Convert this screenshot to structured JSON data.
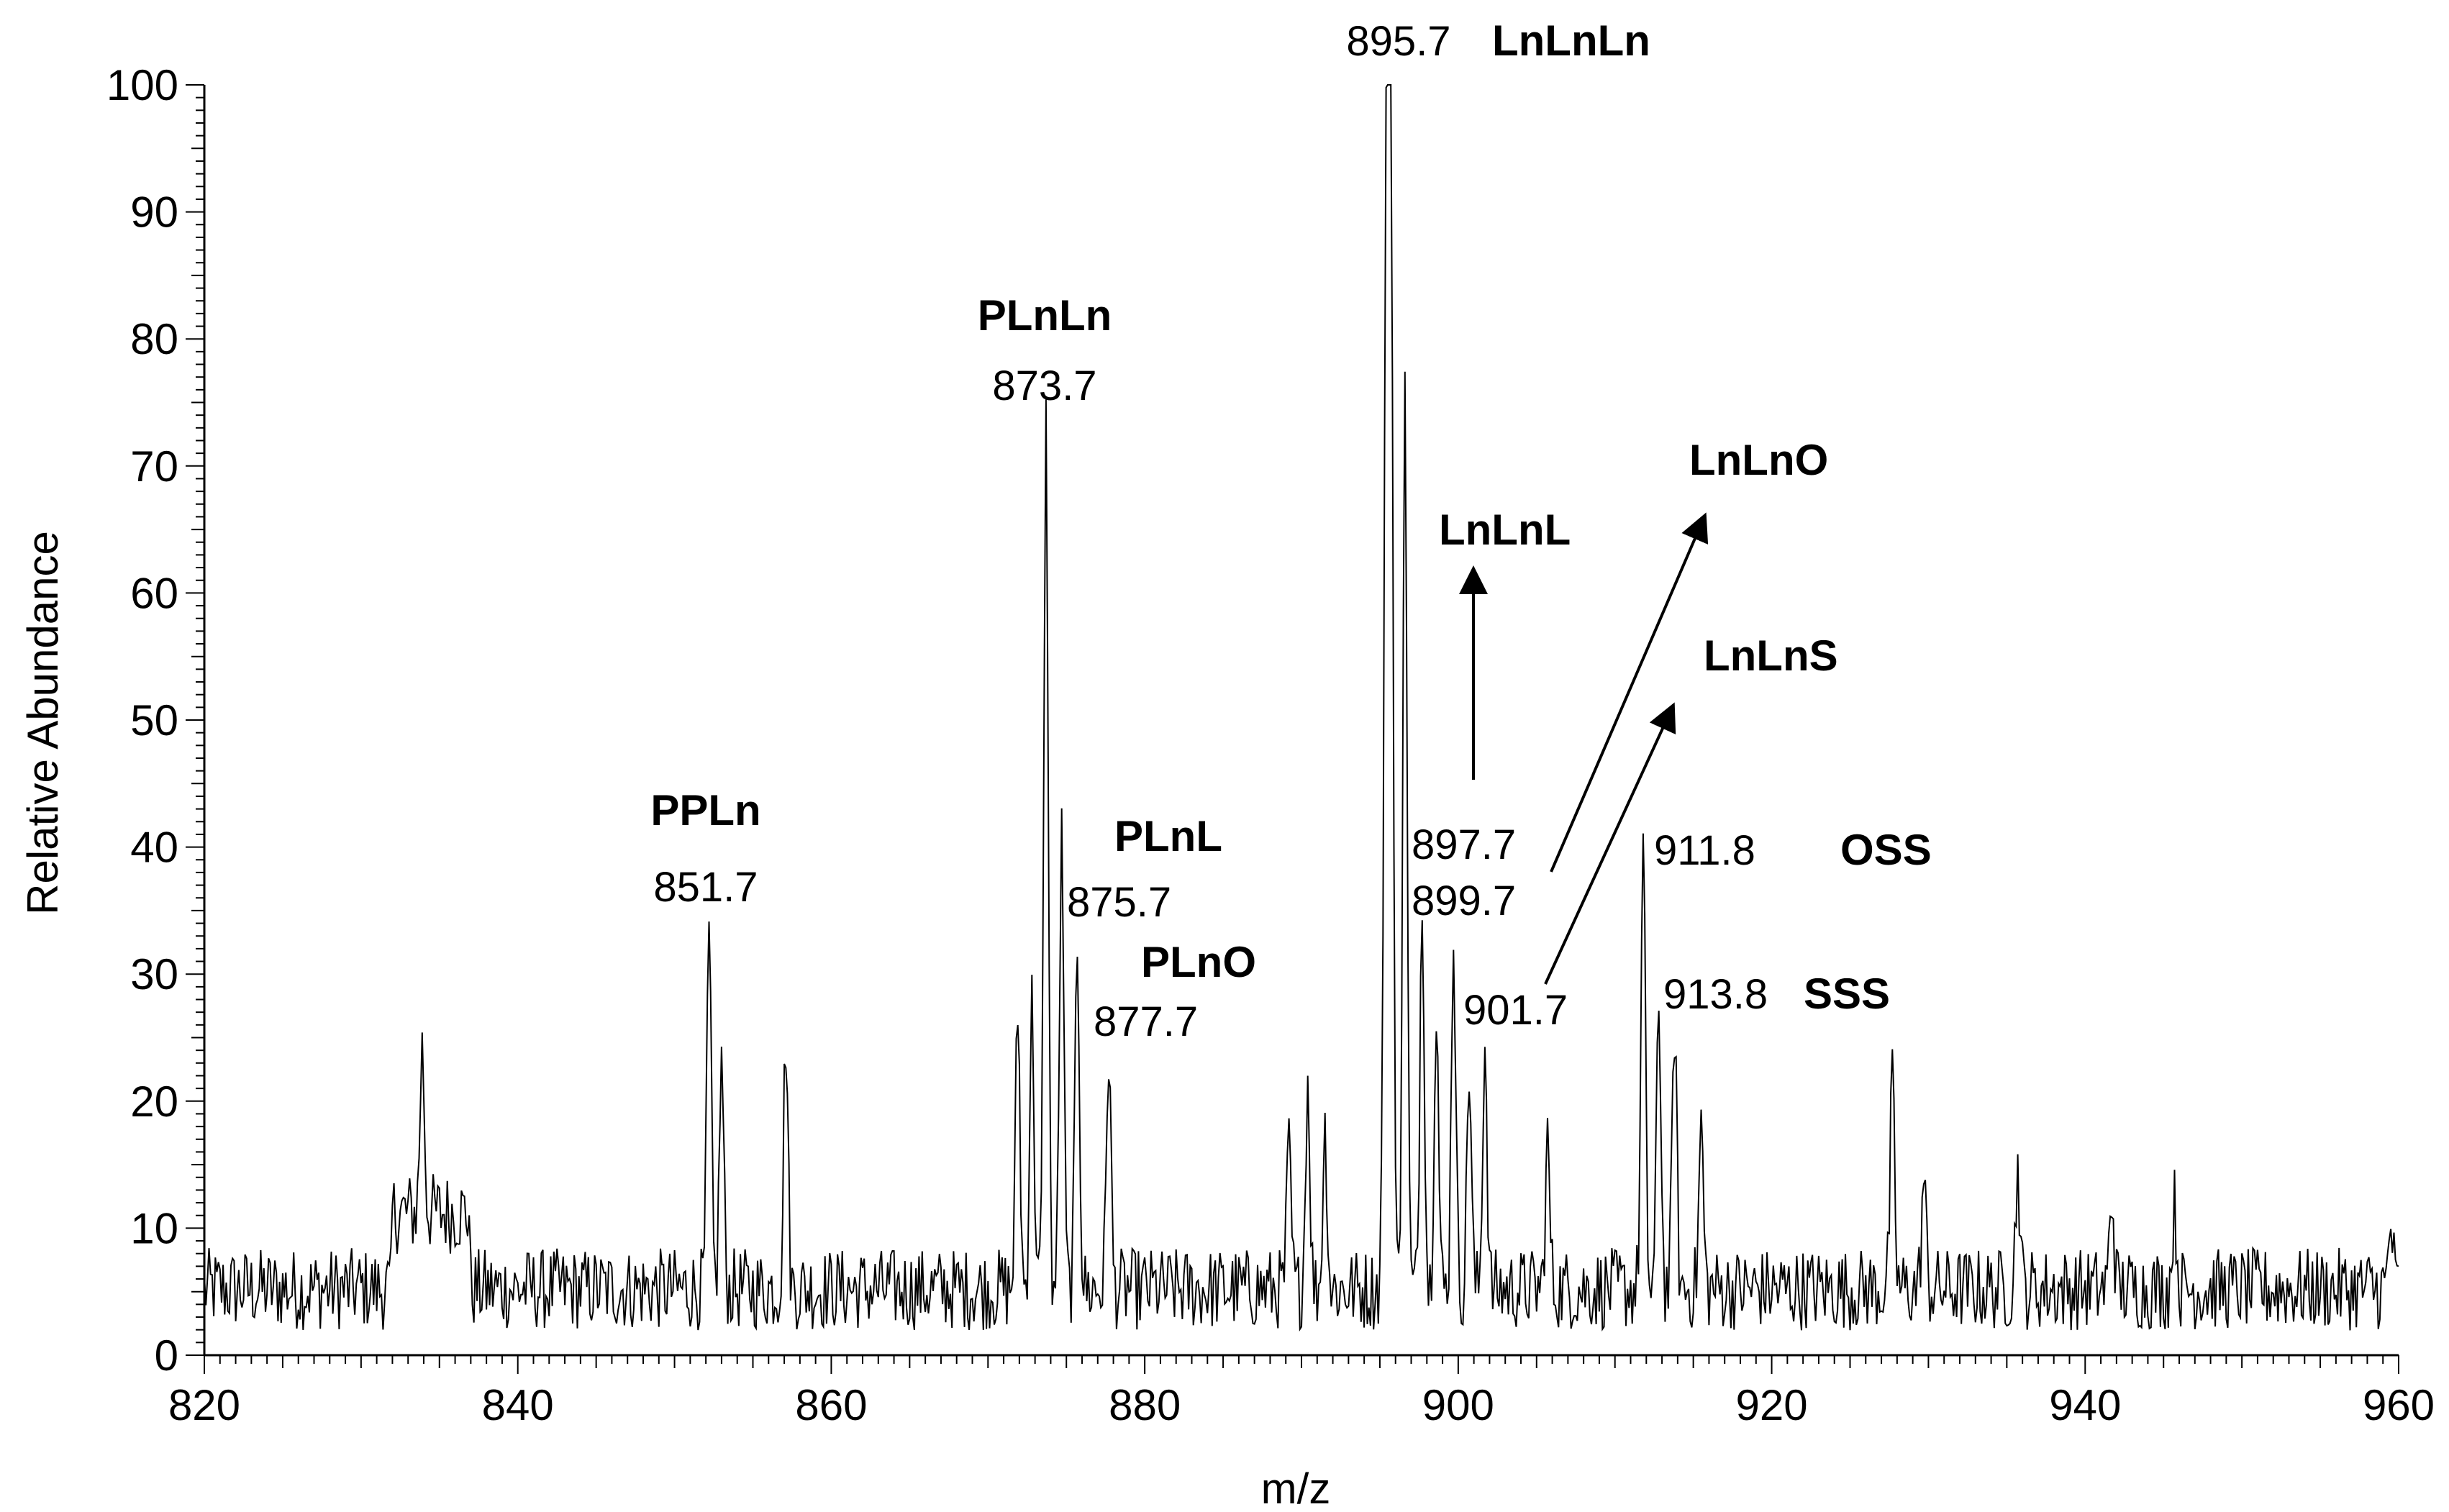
{
  "chart_data": {
    "type": "line",
    "xlabel": "m/z",
    "ylabel": "Relative Abundance",
    "xlim": [
      820,
      960
    ],
    "ylim": [
      0,
      100
    ],
    "x_ticks": [
      "820",
      "840",
      "860",
      "880",
      "900",
      "920",
      "940",
      "960"
    ],
    "y_ticks": [
      "0",
      "10",
      "20",
      "30",
      "40",
      "50",
      "60",
      "70",
      "80",
      "90",
      "100"
    ],
    "grid": false,
    "legend": "none",
    "line_color": "#000000",
    "peaks": [
      {
        "mz": 833.9,
        "y": 18.5
      },
      {
        "mz": 852.2,
        "y": 33.0
      },
      {
        "mz": 853.0,
        "y": 23.5
      },
      {
        "mz": 857.1,
        "y": 25.5
      },
      {
        "mz": 871.9,
        "y": 27.5
      },
      {
        "mz": 872.8,
        "y": 28.0
      },
      {
        "mz": 873.7,
        "y": 73.5
      },
      {
        "mz": 874.7,
        "y": 41.0
      },
      {
        "mz": 875.7,
        "y": 33.0
      },
      {
        "mz": 877.7,
        "y": 24.5
      },
      {
        "mz": 889.2,
        "y": 16.5
      },
      {
        "mz": 890.4,
        "y": 22.0
      },
      {
        "mz": 891.5,
        "y": 18.0
      },
      {
        "mz": 895.4,
        "y": 88.0
      },
      {
        "mz": 895.7,
        "y": 100.0
      },
      {
        "mz": 896.6,
        "y": 75.5
      },
      {
        "mz": 897.7,
        "y": 37.0
      },
      {
        "mz": 898.6,
        "y": 28.5
      },
      {
        "mz": 899.7,
        "y": 33.5
      },
      {
        "mz": 900.7,
        "y": 23.0
      },
      {
        "mz": 901.7,
        "y": 25.0
      },
      {
        "mz": 905.7,
        "y": 17.0
      },
      {
        "mz": 911.8,
        "y": 40.0
      },
      {
        "mz": 912.8,
        "y": 28.0
      },
      {
        "mz": 913.8,
        "y": 26.5
      },
      {
        "mz": 915.5,
        "y": 18.5
      },
      {
        "mz": 927.7,
        "y": 21.5
      },
      {
        "mz": 929.7,
        "y": 14.0
      },
      {
        "mz": 935.7,
        "y": 15.0
      },
      {
        "mz": 941.7,
        "y": 13.0
      },
      {
        "mz": 945.7,
        "y": 12.0
      },
      {
        "mz": 959.5,
        "y": 10.5
      }
    ],
    "annotations": [
      {
        "type": "mz",
        "text": "851.7"
      },
      {
        "type": "name",
        "text": "PPLn"
      },
      {
        "type": "mz",
        "text": "873.7"
      },
      {
        "type": "name",
        "text": "PLnLn"
      },
      {
        "type": "mz",
        "text": "875.7"
      },
      {
        "type": "name",
        "text": "PLnL"
      },
      {
        "type": "mz",
        "text": "877.7"
      },
      {
        "type": "name",
        "text": "PLnO"
      },
      {
        "type": "mz",
        "text": "895.7"
      },
      {
        "type": "name",
        "text": "LnLnLn"
      },
      {
        "type": "mz",
        "text": "897.7"
      },
      {
        "type": "name",
        "text": "LnLnL"
      },
      {
        "type": "mz",
        "text": "899.7"
      },
      {
        "type": "name",
        "text": "LnLnO"
      },
      {
        "type": "mz",
        "text": "901.7"
      },
      {
        "type": "name",
        "text": "LnLnS"
      },
      {
        "type": "mz",
        "text": "911.8"
      },
      {
        "type": "name",
        "text": "OSS"
      },
      {
        "type": "mz",
        "text": "913.8"
      },
      {
        "type": "name",
        "text": "SSS"
      }
    ]
  }
}
